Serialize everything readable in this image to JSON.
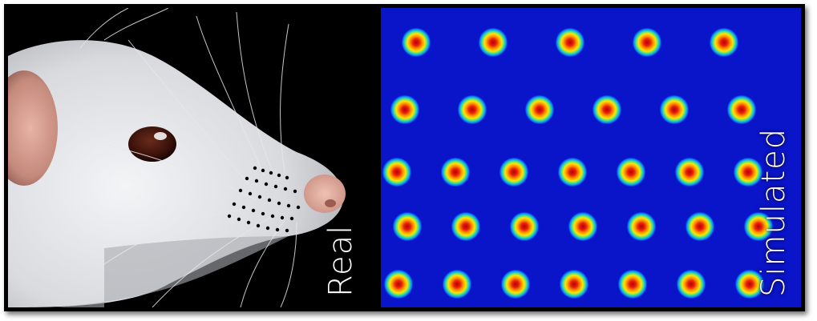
{
  "labels": {
    "real": "Real",
    "simulated": "Simulated"
  },
  "colors": {
    "background": "#0a14c8",
    "dot_core": "#b4000a",
    "dot_ring_yellow": "#ffe600",
    "dot_ring_green": "#30e0a0",
    "whisker_dots": "#000000"
  },
  "simulated_grid": {
    "rows": [
      5,
      6,
      7,
      7,
      7
    ]
  }
}
